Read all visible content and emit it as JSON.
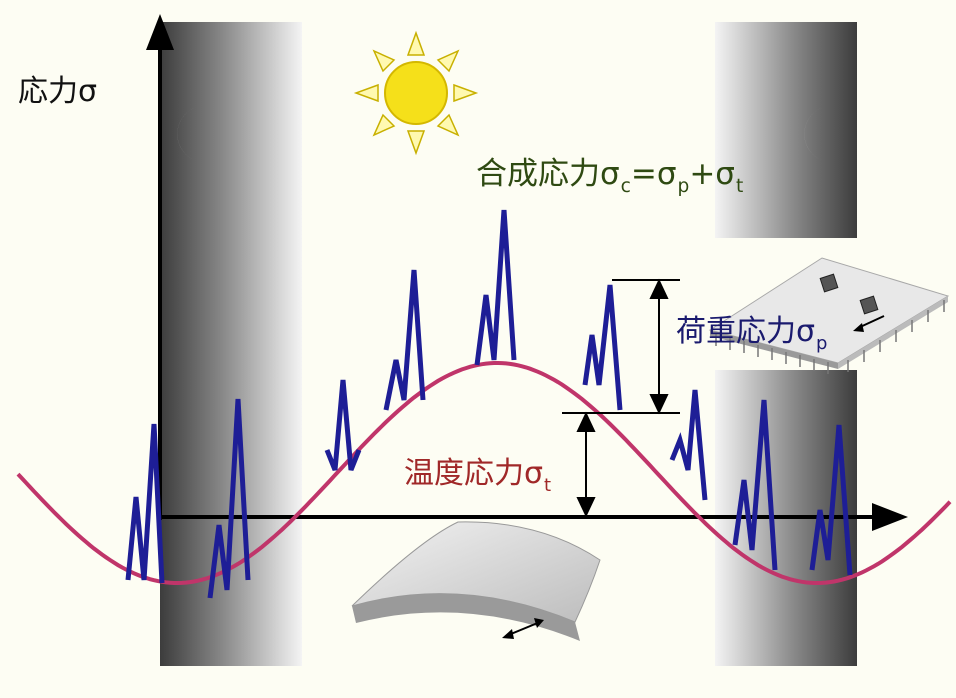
{
  "labels": {
    "stress_axis": "応力σ",
    "combined_stress": {
      "text": "合成応力σ",
      "eq1": "=σ",
      "eq2": "+σ",
      "sub_c": "c",
      "sub_p": "p",
      "sub_t": "t"
    },
    "load_stress": {
      "text": "荷重応力σ",
      "sub": "p"
    },
    "thermal_stress": {
      "text": "温度応力σ",
      "sub": "t"
    }
  },
  "colors": {
    "background": "#fdfdf3",
    "thermal_curve": "#c0356a",
    "load_spikes": "#1e1e96",
    "sun": "#f5e01a",
    "axis": "#000000"
  },
  "icons": [
    "sun-icon",
    "moon-icon",
    "curved-board-icon",
    "circuit-board-icon"
  ]
}
